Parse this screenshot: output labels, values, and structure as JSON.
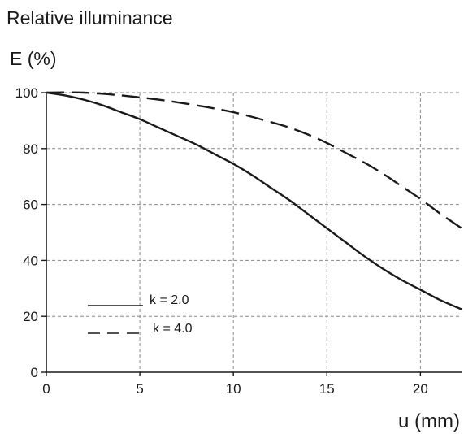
{
  "chart_data": {
    "type": "line",
    "ylabel_line1": "Relative     illuminance",
    "ylabel_line2": "E  (%)",
    "xlabel": "u (mm)",
    "xlim": [
      0,
      22.2
    ],
    "ylim": [
      0,
      100
    ],
    "xticks": [
      0,
      5,
      10,
      15,
      20
    ],
    "yticks": [
      0,
      20,
      40,
      60,
      80,
      100
    ],
    "grid": true,
    "legend_position": "bottom-left",
    "series": [
      {
        "name": "k = 2.0",
        "style": "solid",
        "color": "#1a1a1a",
        "x": [
          0,
          1,
          2,
          3,
          4,
          5,
          6,
          7,
          8,
          9,
          10,
          11,
          12,
          13,
          14,
          15,
          16,
          17,
          18,
          19,
          20,
          21,
          22.2
        ],
        "y": [
          100,
          99,
          97.5,
          95.5,
          93,
          90.5,
          87.5,
          84.5,
          81.5,
          78,
          74.5,
          70.5,
          66,
          61.5,
          56.5,
          51.5,
          46.5,
          41.5,
          37,
          33,
          29.5,
          26,
          22.5
        ]
      },
      {
        "name": "k = 4.0",
        "style": "dashed",
        "color": "#1a1a1a",
        "x": [
          0,
          2,
          4,
          6,
          8,
          10,
          12,
          13,
          14,
          15,
          16,
          17,
          18,
          19,
          20,
          21,
          22.2
        ],
        "y": [
          100,
          100,
          99,
          97.5,
          95.5,
          93,
          89.5,
          87.5,
          85,
          82,
          78.5,
          75,
          71,
          66.5,
          62,
          57,
          51.5
        ]
      }
    ]
  }
}
